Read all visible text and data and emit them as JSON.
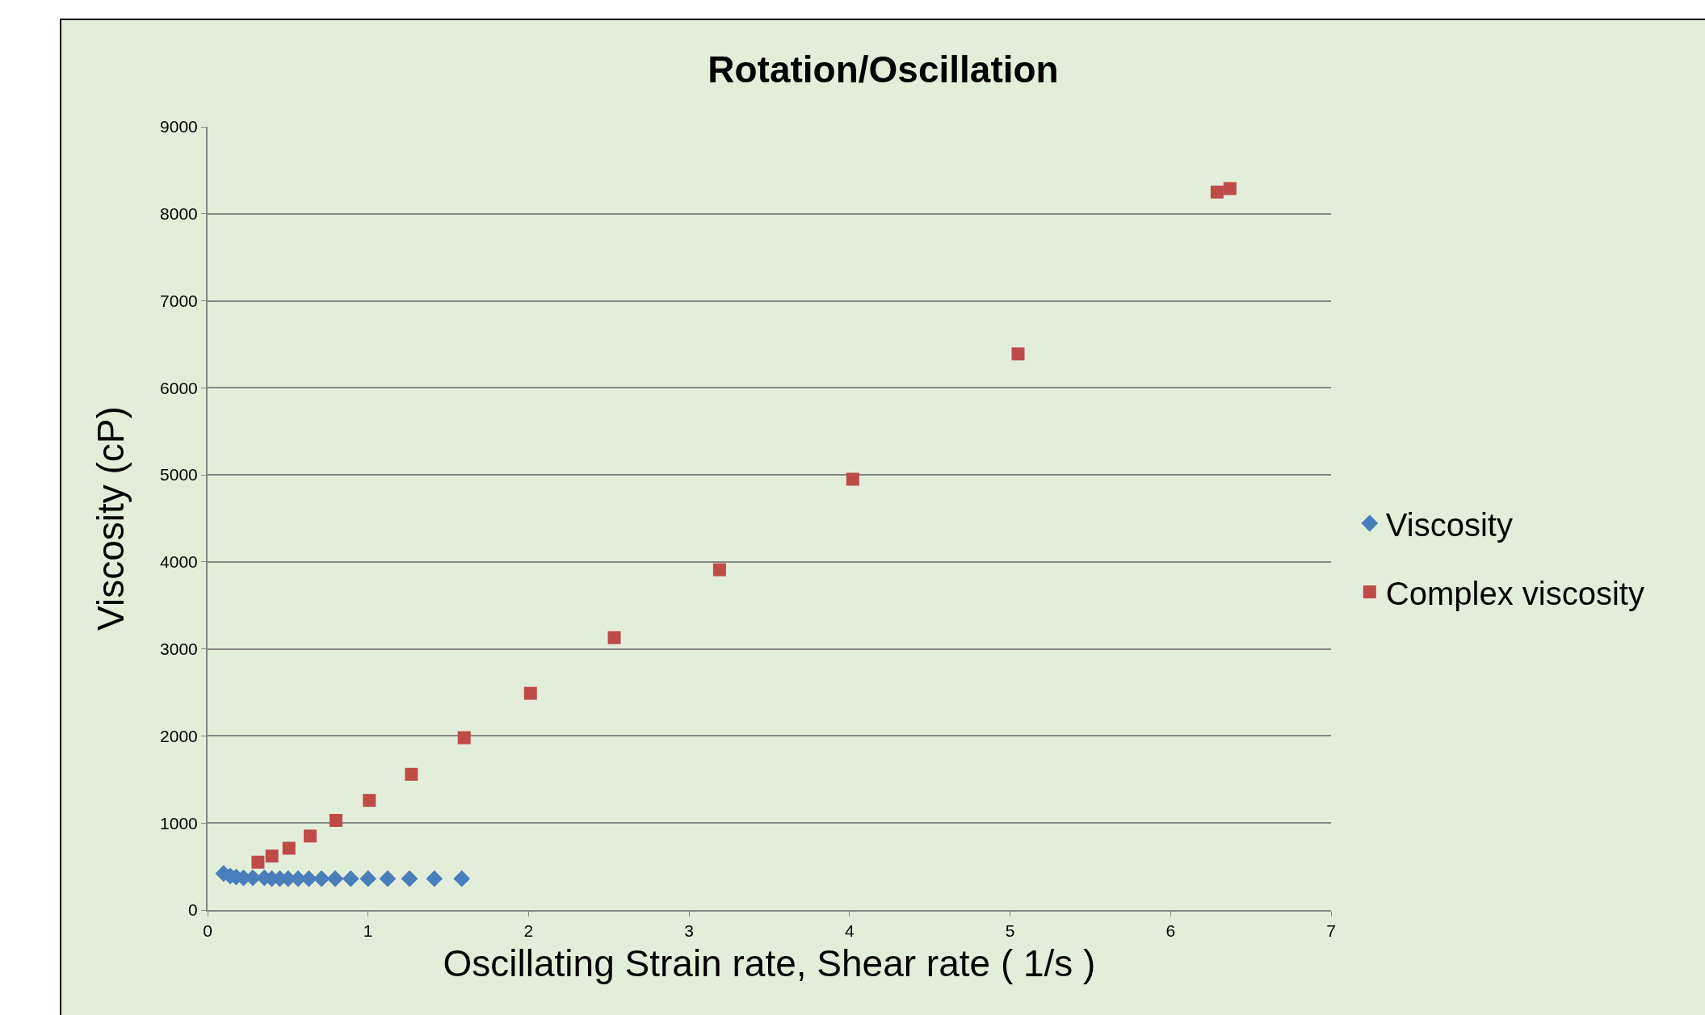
{
  "chart_data": {
    "type": "scatter",
    "title": "Rotation/Oscillation",
    "xlabel": "Oscillating Strain rate, Shear rate ( 1/s )",
    "ylabel": "Viscosity (cP)",
    "xlim": [
      0,
      7
    ],
    "xticks": [
      0,
      1,
      2,
      3,
      4,
      5,
      6,
      7
    ],
    "ylim": [
      0,
      9000
    ],
    "yticks": [
      0,
      1000,
      2000,
      3000,
      4000,
      5000,
      6000,
      7000,
      8000,
      9000
    ],
    "grid": "y",
    "legend": "right",
    "series": [
      {
        "name": "Viscosity",
        "color": "#4a7ebb",
        "marker": "diamond",
        "x": [
          0.1,
          0.141,
          0.178,
          0.224,
          0.282,
          0.354,
          0.4,
          0.45,
          0.502,
          0.564,
          0.631,
          0.71,
          0.795,
          0.892,
          1.0,
          1.122,
          1.258,
          1.413,
          1.584
        ],
        "values": [
          420,
          390,
          380,
          370,
          370,
          370,
          360,
          360,
          360,
          360,
          360,
          360,
          360,
          360,
          360,
          360,
          360,
          360,
          360
        ]
      },
      {
        "name": "Complex viscosity",
        "color": "#be4b48",
        "marker": "square",
        "x": [
          0.314,
          0.401,
          0.507,
          0.639,
          0.8,
          1.008,
          1.27,
          1.599,
          2.012,
          2.534,
          3.19,
          4.02,
          5.05,
          6.29,
          6.37
        ],
        "values": [
          550,
          620,
          710,
          850,
          1030,
          1260,
          1560,
          1980,
          2490,
          3130,
          3910,
          4950,
          6390,
          8250,
          8290
        ]
      }
    ]
  }
}
